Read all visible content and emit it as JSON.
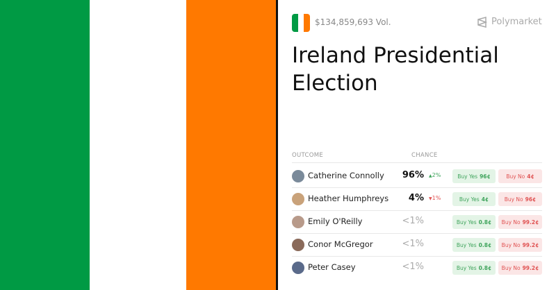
{
  "header": {
    "volume": "$134,859,693 Vol.",
    "brand": "Polymarket",
    "title": "Ireland Presidential Election"
  },
  "table": {
    "columns": [
      "OUTCOME",
      "CHANCE"
    ],
    "rows": [
      {
        "name": "Catherine Connolly",
        "chance": "96%",
        "change": "2%",
        "direction": "up",
        "yes_label": "Buy Yes",
        "yes_price": "96¢",
        "no_label": "Buy No",
        "no_price": "4¢"
      },
      {
        "name": "Heather Humphreys",
        "chance": "4%",
        "change": "1%",
        "direction": "down",
        "yes_label": "Buy Yes",
        "yes_price": "4¢",
        "no_label": "Buy No",
        "no_price": "96¢"
      },
      {
        "name": "Emily O'Reilly",
        "chance": "<1%",
        "yes_label": "Buy Yes",
        "yes_price": "0.8¢",
        "no_label": "Buy No",
        "no_price": "99.2¢"
      },
      {
        "name": "Conor McGregor",
        "chance": "<1%",
        "yes_label": "Buy Yes",
        "yes_price": "0.8¢",
        "no_label": "Buy No",
        "no_price": "99.2¢"
      },
      {
        "name": "Peter Casey",
        "chance": "<1%",
        "yes_label": "Buy Yes",
        "yes_price": "0.8¢",
        "no_label": "Buy No",
        "no_price": "99.2¢"
      }
    ]
  }
}
